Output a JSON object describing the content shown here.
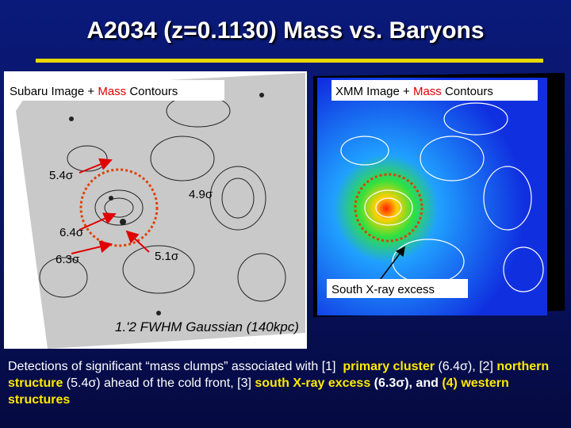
{
  "title": "A2034 (z=0.1130) Mass vs. Baryons",
  "left_panel": {
    "label": [
      "Subaru Image + ",
      "Mass",
      " Contours"
    ],
    "annotations": [
      "5.4σ",
      "4.9σ",
      "6.4σ",
      "6.3σ",
      "5.1σ"
    ],
    "caption": "1.'2 FWHM Gaussian (140kpc)"
  },
  "right_panel": {
    "label": [
      "XMM Image + ",
      "Mass",
      " Contours"
    ],
    "annotation": "South X-ray excess"
  },
  "footer": [
    "Detections of significant “mass clumps” associated with [1]  ",
    "primary cluster",
    " (6.4σ), [2] ",
    "northern structure",
    " (5.4σ) ahead of the cold front, [3] ",
    "south X-ray excess",
    " (6.3σ), and ",
    "(4) western structures"
  ]
}
